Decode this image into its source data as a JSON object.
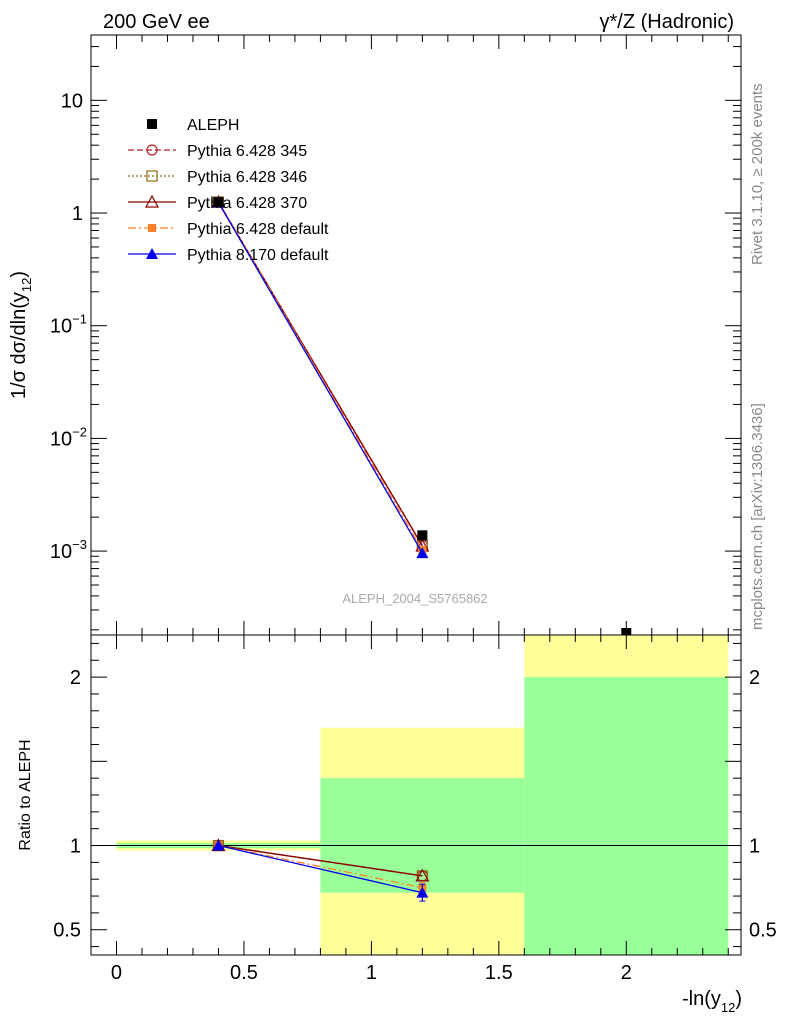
{
  "header": {
    "left_title": "200 GeV ee",
    "right_title": "γ*/Z (Hadronic)"
  },
  "watermark": "ALEPH_2004_S5765862",
  "side_text": {
    "rivet": "Rivet 3.1.10, ≥ 200k events",
    "mcplots": "mcplots.cern.ch [arXiv:1306.3436]"
  },
  "colors": {
    "aleph": "#000000",
    "p345": "#b22222",
    "p346": "#8b6914",
    "p370": "#8b0000",
    "p6def": "#ff7f27",
    "p8def": "#0000ee",
    "band_inner": "#99ff99",
    "band_outer": "#ffff99"
  },
  "chart_data": [
    {
      "type": "line",
      "name": "main",
      "yscale": "log",
      "ylabel_parts": {
        "main": "1/σ  dσ/dln(y",
        "sub": "12",
        "close": ")"
      },
      "xlim": [
        -0.1,
        2.45
      ],
      "ylim": [
        0.00018,
        38
      ],
      "y_ticks": [
        {
          "value": 10,
          "base": "10",
          "exp": ""
        },
        {
          "value": 1,
          "base": "1",
          "exp": ""
        },
        {
          "value": 0.1,
          "base": "10",
          "exp": "−1"
        },
        {
          "value": 0.01,
          "base": "10",
          "exp": "−2"
        },
        {
          "value": 0.001,
          "base": "10",
          "exp": "−3"
        }
      ],
      "legend": {
        "placement": "top-left",
        "entries": [
          {
            "label": "ALEPH",
            "marker": "square-filled",
            "style": "none",
            "color_key": "aleph"
          },
          {
            "label": "Pythia 6.428 345",
            "marker": "circle-open",
            "style": "dashed",
            "color_key": "p345"
          },
          {
            "label": "Pythia 6.428 346",
            "marker": "square-open",
            "style": "dotted",
            "color_key": "p346"
          },
          {
            "label": "Pythia 6.428 370",
            "marker": "triangle-open",
            "style": "solid",
            "color_key": "p370"
          },
          {
            "label": "Pythia 6.428 default",
            "marker": "square-filled-small",
            "style": "dashdot",
            "color_key": "p6def"
          },
          {
            "label": "Pythia 8.170 default",
            "marker": "triangle-filled",
            "style": "solid",
            "color_key": "p8def"
          }
        ]
      },
      "data": {
        "ALEPH": {
          "x": [
            0.4,
            1.2,
            2.0
          ],
          "y": [
            1.25,
            0.00138,
            0.00018
          ]
        },
        "Pythia 6.428 345": {
          "x": [
            0.4,
            1.2
          ],
          "y": [
            1.25,
            0.00112
          ]
        },
        "Pythia 6.428 346": {
          "x": [
            0.4,
            1.2
          ],
          "y": [
            1.25,
            0.00112
          ]
        },
        "Pythia 6.428 370": {
          "x": [
            0.4,
            1.2
          ],
          "y": [
            1.25,
            0.00111
          ]
        },
        "Pythia 6.428 default": {
          "x": [
            0.4,
            1.2
          ],
          "y": [
            1.26,
            0.00102
          ]
        },
        "Pythia 8.170 default": {
          "x": [
            0.4,
            1.2
          ],
          "y": [
            1.24,
            0.00096
          ]
        }
      }
    },
    {
      "type": "line",
      "name": "ratio",
      "ylabel": "Ratio to ALEPH",
      "xlabel_parts": {
        "main": "-ln(y",
        "sub": "12",
        "close": ")"
      },
      "xlim": [
        -0.1,
        2.45
      ],
      "ylim": [
        0.35,
        2.25
      ],
      "x_ticks": [
        0,
        0.5,
        1,
        1.5,
        2
      ],
      "x_tick_labels": [
        "0",
        "0.5",
        "1",
        "1.5",
        "2"
      ],
      "y_ticks": [
        0.5,
        1,
        2
      ],
      "y_tick_labels": [
        "0.5",
        "1",
        "2"
      ],
      "bands": [
        {
          "x": [
            0,
            0.8
          ],
          "inner": [
            0.985,
            1.015
          ],
          "outer": [
            0.97,
            1.03
          ]
        },
        {
          "x": [
            0.8,
            1.6
          ],
          "inner": [
            0.72,
            1.4
          ],
          "outer": [
            0.35,
            1.7
          ]
        },
        {
          "x": [
            1.6,
            2.4
          ],
          "inner": [
            0.35,
            2.0
          ],
          "outer": [
            0.35,
            2.25
          ]
        }
      ],
      "data": {
        "Pythia 6.428 345": {
          "x": [
            0.4,
            1.2
          ],
          "y": [
            1.0,
            0.82
          ]
        },
        "Pythia 6.428 346": {
          "x": [
            0.4,
            1.2
          ],
          "y": [
            1.0,
            0.82
          ]
        },
        "Pythia 6.428 370": {
          "x": [
            0.4,
            1.2
          ],
          "y": [
            1.0,
            0.82
          ]
        },
        "Pythia 6.428 default": {
          "x": [
            0.4,
            1.2
          ],
          "y": [
            1.0,
            0.75
          ],
          "err": [
            0,
            0.03
          ]
        },
        "Pythia 8.170 default": {
          "x": [
            0.4,
            1.2
          ],
          "y": [
            1.0,
            0.72
          ],
          "err": [
            0.01,
            0.05
          ]
        }
      }
    }
  ]
}
